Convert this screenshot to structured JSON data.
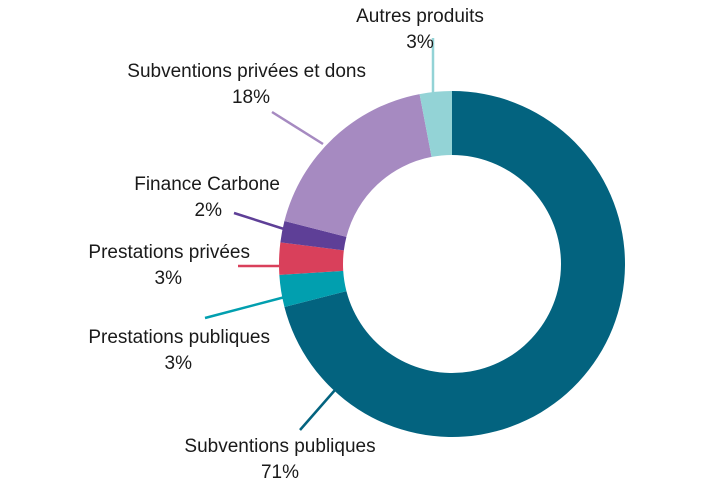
{
  "chart_data": {
    "type": "pie",
    "donut": true,
    "slices": [
      {
        "label": "Subventions publiques",
        "value": 71,
        "value_label": "71%",
        "color": "#03637f"
      },
      {
        "label": "Prestations publiques",
        "value": 3,
        "value_label": "3%",
        "color": "#019faf"
      },
      {
        "label": "Prestations privées",
        "value": 3,
        "value_label": "3%",
        "color": "#d9405b"
      },
      {
        "label": "Finance Carbone",
        "value": 2,
        "value_label": "2%",
        "color": "#5e3f97"
      },
      {
        "label": "Subventions privées et dons",
        "value": 18,
        "value_label": "18%",
        "color": "#a68ac1"
      },
      {
        "label": "Autres produits",
        "value": 3,
        "value_label": "3%",
        "color": "#93d3d6"
      }
    ]
  }
}
